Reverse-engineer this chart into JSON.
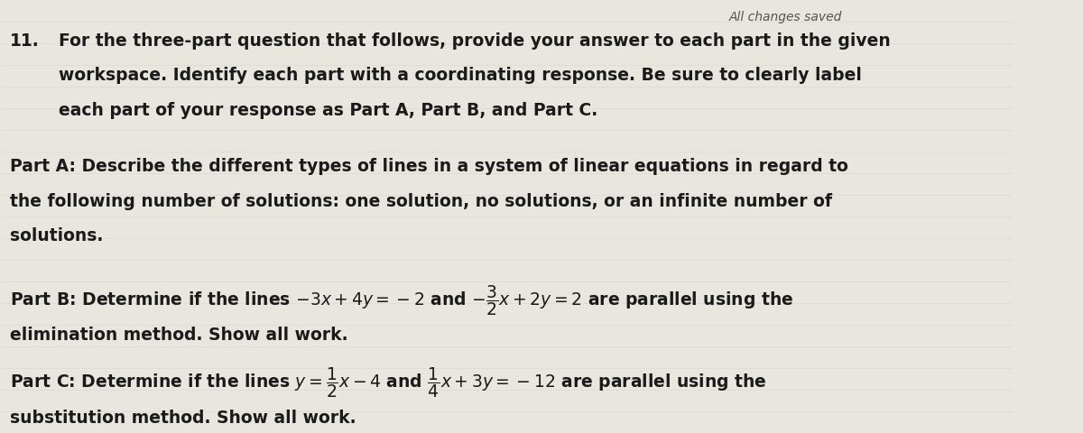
{
  "bg_color": "#e8e6df",
  "right_panel_color": "#2a2a2a",
  "text_color": "#1a1a1a",
  "header_italic": "All changes saved",
  "header_italic_size": 10,
  "font_size_main": 13.5,
  "q_number": "11.",
  "line1": "For the three-part question that follows, provide your answer to each part in the given",
  "line2": "workspace. Identify each part with a coordinating response. Be sure to clearly label",
  "line3": "each part of your response as Part A, Part B, and Part C.",
  "partA_line1": "Part A: Describe the different types of lines in a system of linear equations in regard to",
  "partA_line2": "the following number of solutions: one solution, no solutions, or an infinite number of",
  "partA_line3": "solutions.",
  "partB_line2": "elimination method. Show all work.",
  "partC_line2": "substitution method. Show all work."
}
